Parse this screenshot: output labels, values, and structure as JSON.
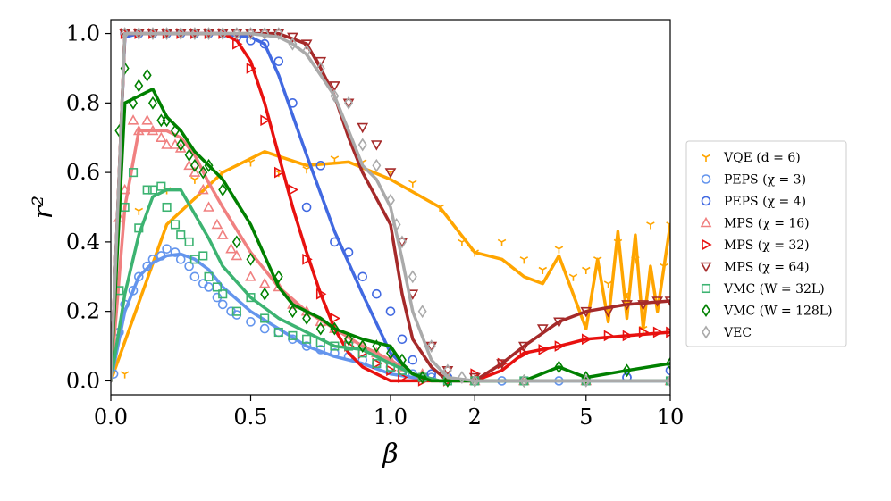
{
  "chart_data": {
    "type": "scatter",
    "xlabel": "β",
    "ylabel": "r²",
    "x_scale": "piecewise: linear on [0,1], logarithmic on [1,10]",
    "xlim": [
      0,
      10
    ],
    "ylim": [
      -0.04,
      1.04
    ],
    "x_ticks": [
      0.0,
      0.5,
      1.0,
      2,
      5,
      10
    ],
    "x_tick_labels": [
      "0.0",
      "0.5",
      "1.0",
      "2",
      "5",
      "10"
    ],
    "y_ticks": [
      0.0,
      0.2,
      0.4,
      0.6,
      0.8,
      1.0
    ],
    "y_tick_labels": [
      "0.0",
      "0.2",
      "0.4",
      "0.6",
      "0.8",
      "1.0"
    ],
    "legend_position": "outside right",
    "series": [
      {
        "name": "VQE (d = 6)",
        "color": "#FFA500",
        "marker": "tri_down",
        "line_x": [
          0,
          0.2,
          0.4,
          0.55,
          0.7,
          0.85,
          1.0,
          1.5,
          2.0,
          2.5,
          3.0,
          3.5,
          4.0,
          5.0,
          5.5,
          6.0,
          6.5,
          7.0,
          7.5,
          8.0,
          8.5,
          9.0,
          10.0
        ],
        "line_y": [
          0.0,
          0.45,
          0.6,
          0.66,
          0.62,
          0.63,
          0.58,
          0.5,
          0.37,
          0.35,
          0.3,
          0.28,
          0.36,
          0.15,
          0.35,
          0.17,
          0.43,
          0.18,
          0.42,
          0.15,
          0.33,
          0.2,
          0.45
        ],
        "scatter_x": [
          0.05,
          0.1,
          0.2,
          0.3,
          0.4,
          0.5,
          0.6,
          0.7,
          0.8,
          0.9,
          1.0,
          1.2,
          1.5,
          1.8,
          2.0,
          2.5,
          3.0,
          3.5,
          4.0,
          4.5,
          5.0,
          5.5,
          6.0,
          6.5,
          7.0,
          7.5,
          8.0,
          8.5,
          9.0,
          9.5,
          10.0
        ],
        "scatter_y": [
          0.02,
          0.49,
          0.55,
          0.58,
          0.6,
          0.63,
          0.6,
          0.61,
          0.64,
          0.63,
          0.6,
          0.57,
          0.5,
          0.4,
          0.37,
          0.4,
          0.35,
          0.32,
          0.38,
          0.3,
          0.32,
          0.35,
          0.28,
          0.4,
          0.25,
          0.35,
          0.15,
          0.45,
          0.22,
          0.33,
          0.45
        ]
      },
      {
        "name": "PEPS (χ = 3)",
        "color": "#6495ED",
        "marker": "circle",
        "line_x": [
          0,
          0.05,
          0.1,
          0.15,
          0.2,
          0.25,
          0.3,
          0.35,
          0.4,
          0.5,
          0.6,
          0.7,
          0.8,
          0.9,
          1.0,
          1.2,
          1.5,
          2.0,
          3.0,
          5.0,
          10.0
        ],
        "line_y": [
          0.0,
          0.2,
          0.3,
          0.34,
          0.36,
          0.365,
          0.35,
          0.32,
          0.27,
          0.2,
          0.15,
          0.1,
          0.07,
          0.05,
          0.02,
          0.01,
          0.0,
          0.0,
          0.0,
          0.0,
          0.0
        ],
        "scatter_x": [
          0.01,
          0.03,
          0.05,
          0.08,
          0.1,
          0.13,
          0.15,
          0.18,
          0.2,
          0.23,
          0.25,
          0.28,
          0.3,
          0.33,
          0.35,
          0.38,
          0.4,
          0.43,
          0.45,
          0.5,
          0.55,
          0.6,
          0.65,
          0.7,
          0.75,
          0.8,
          0.85,
          0.9,
          0.95,
          1.0,
          1.1,
          1.2,
          1.4,
          1.6,
          2.0,
          2.5,
          3.0,
          4.0,
          5.0,
          7.0,
          10.0
        ],
        "scatter_y": [
          0.02,
          0.14,
          0.22,
          0.26,
          0.3,
          0.33,
          0.35,
          0.36,
          0.38,
          0.37,
          0.35,
          0.33,
          0.3,
          0.28,
          0.27,
          0.24,
          0.22,
          0.2,
          0.19,
          0.17,
          0.15,
          0.14,
          0.12,
          0.1,
          0.09,
          0.08,
          0.07,
          0.06,
          0.05,
          0.04,
          0.03,
          0.02,
          0.01,
          0.01,
          0.0,
          0.0,
          0.0,
          0.0,
          0.0,
          0.01,
          0.0
        ]
      },
      {
        "name": "PEPS (χ = 4)",
        "color": "#4169E1",
        "marker": "circle",
        "line_x": [
          0,
          0.05,
          0.1,
          0.2,
          0.3,
          0.4,
          0.5,
          0.55,
          0.6,
          0.7,
          0.8,
          0.9,
          1.0,
          1.2,
          1.5,
          2.0,
          3.0,
          5.0,
          10.0
        ],
        "line_y": [
          0.0,
          0.99,
          1.0,
          1.0,
          1.0,
          1.0,
          0.99,
          0.97,
          0.88,
          0.65,
          0.43,
          0.25,
          0.08,
          0.02,
          0.0,
          0.0,
          0.0,
          0.0,
          0.0
        ],
        "scatter_x": [
          0.05,
          0.1,
          0.15,
          0.2,
          0.25,
          0.3,
          0.35,
          0.4,
          0.45,
          0.5,
          0.55,
          0.6,
          0.65,
          0.7,
          0.75,
          0.8,
          0.85,
          0.9,
          0.95,
          1.0,
          1.1,
          1.2,
          1.4,
          1.6,
          2.0,
          3.0,
          5.0,
          7.0,
          10.0
        ],
        "scatter_y": [
          1.0,
          1.0,
          1.0,
          1.0,
          1.0,
          1.0,
          1.0,
          1.0,
          0.99,
          0.98,
          0.97,
          0.92,
          0.8,
          0.5,
          0.62,
          0.4,
          0.37,
          0.3,
          0.25,
          0.2,
          0.12,
          0.06,
          0.02,
          0.01,
          0.0,
          0.0,
          0.0,
          0.01,
          0.03
        ]
      },
      {
        "name": "MPS (χ = 16)",
        "color": "#F08080",
        "marker": "triangle_up",
        "line_x": [
          0,
          0.05,
          0.1,
          0.15,
          0.2,
          0.25,
          0.3,
          0.35,
          0.4,
          0.5,
          0.6,
          0.7,
          0.8,
          0.9,
          1.0,
          1.2,
          1.5,
          2.0,
          3.0,
          5.0,
          10.0
        ],
        "line_y": [
          0.0,
          0.5,
          0.72,
          0.72,
          0.72,
          0.7,
          0.65,
          0.57,
          0.5,
          0.37,
          0.27,
          0.2,
          0.15,
          0.1,
          0.06,
          0.02,
          0.0,
          0.0,
          0.0,
          0.0,
          0.0
        ],
        "scatter_x": [
          0.03,
          0.05,
          0.08,
          0.1,
          0.13,
          0.15,
          0.18,
          0.2,
          0.23,
          0.25,
          0.28,
          0.3,
          0.33,
          0.35,
          0.38,
          0.4,
          0.43,
          0.45,
          0.5,
          0.55,
          0.6,
          0.65,
          0.7,
          0.75,
          0.8,
          0.85,
          0.9,
          0.95,
          1.0,
          1.1,
          1.3,
          1.6,
          2.0,
          3.0,
          5.0,
          10.0
        ],
        "scatter_y": [
          0.47,
          0.55,
          0.75,
          0.72,
          0.75,
          0.72,
          0.7,
          0.68,
          0.68,
          0.67,
          0.62,
          0.6,
          0.55,
          0.5,
          0.45,
          0.42,
          0.38,
          0.36,
          0.3,
          0.28,
          0.27,
          0.22,
          0.2,
          0.17,
          0.15,
          0.12,
          0.1,
          0.08,
          0.06,
          0.04,
          0.02,
          0.01,
          0.0,
          0.0,
          0.0,
          0.0
        ]
      },
      {
        "name": "MPS (χ = 32)",
        "color": "#E8110F",
        "marker": "triangle_right",
        "line_x": [
          0,
          0.05,
          0.1,
          0.2,
          0.3,
          0.4,
          0.45,
          0.5,
          0.55,
          0.6,
          0.65,
          0.7,
          0.75,
          0.8,
          0.85,
          0.9,
          1.0,
          1.2,
          1.5,
          2.0,
          2.5,
          3.0,
          4.0,
          5.0,
          7.0,
          10.0
        ],
        "line_y": [
          0.0,
          1.0,
          1.0,
          1.0,
          1.0,
          1.0,
          0.98,
          0.92,
          0.8,
          0.65,
          0.5,
          0.37,
          0.25,
          0.15,
          0.08,
          0.04,
          0.0,
          0.0,
          0.0,
          0.0,
          0.03,
          0.08,
          0.1,
          0.12,
          0.13,
          0.14
        ],
        "scatter_x": [
          0.05,
          0.1,
          0.15,
          0.2,
          0.25,
          0.3,
          0.35,
          0.4,
          0.45,
          0.5,
          0.55,
          0.6,
          0.65,
          0.7,
          0.75,
          0.8,
          0.85,
          0.9,
          0.95,
          1.0,
          1.1,
          1.3,
          1.6,
          2.0,
          2.5,
          3.0,
          3.5,
          4.0,
          5.0,
          6.0,
          7.0,
          8.0,
          9.0,
          10.0
        ],
        "scatter_y": [
          1.0,
          1.0,
          1.0,
          1.0,
          1.0,
          1.0,
          1.0,
          1.0,
          0.97,
          0.9,
          0.75,
          0.6,
          0.55,
          0.35,
          0.25,
          0.18,
          0.1,
          0.08,
          0.05,
          0.03,
          0.01,
          0.0,
          0.0,
          0.02,
          0.05,
          0.08,
          0.09,
          0.1,
          0.12,
          0.13,
          0.13,
          0.14,
          0.14,
          0.14
        ]
      },
      {
        "name": "MPS (χ = 64)",
        "color": "#A52A2A",
        "marker": "triangle_down",
        "line_x": [
          0,
          0.05,
          0.1,
          0.2,
          0.3,
          0.4,
          0.5,
          0.6,
          0.7,
          0.75,
          0.8,
          0.85,
          0.9,
          1.0,
          1.1,
          1.2,
          1.4,
          1.6,
          2.0,
          2.5,
          3.0,
          4.0,
          5.0,
          7.0,
          10.0
        ],
        "line_y": [
          0.0,
          1.0,
          1.0,
          1.0,
          1.0,
          1.0,
          1.0,
          1.0,
          0.97,
          0.9,
          0.82,
          0.7,
          0.6,
          0.45,
          0.25,
          0.12,
          0.04,
          0.0,
          0.0,
          0.05,
          0.1,
          0.17,
          0.2,
          0.22,
          0.23
        ],
        "scatter_x": [
          0.05,
          0.1,
          0.15,
          0.2,
          0.25,
          0.3,
          0.35,
          0.4,
          0.45,
          0.5,
          0.55,
          0.6,
          0.65,
          0.7,
          0.75,
          0.8,
          0.85,
          0.9,
          0.95,
          1.0,
          1.1,
          1.2,
          1.4,
          1.6,
          2.0,
          2.5,
          3.0,
          3.5,
          4.0,
          5.0,
          6.0,
          7.0,
          8.0,
          9.0,
          10.0
        ],
        "scatter_y": [
          1.0,
          1.0,
          1.0,
          1.0,
          1.0,
          1.0,
          1.0,
          1.0,
          1.0,
          1.0,
          1.0,
          1.0,
          0.99,
          0.97,
          0.92,
          0.85,
          0.8,
          0.73,
          0.68,
          0.6,
          0.4,
          0.25,
          0.1,
          0.03,
          0.01,
          0.05,
          0.1,
          0.15,
          0.17,
          0.2,
          0.2,
          0.22,
          0.22,
          0.23,
          0.23
        ]
      },
      {
        "name": "VMC (W = 32L)",
        "color": "#3CB371",
        "marker": "square",
        "line_x": [
          0,
          0.05,
          0.1,
          0.15,
          0.2,
          0.25,
          0.3,
          0.35,
          0.4,
          0.5,
          0.6,
          0.7,
          0.8,
          0.9,
          1.0,
          1.2,
          1.5,
          2.0,
          3.0,
          5.0,
          10.0
        ],
        "line_y": [
          0.0,
          0.25,
          0.42,
          0.53,
          0.55,
          0.55,
          0.48,
          0.41,
          0.33,
          0.24,
          0.18,
          0.14,
          0.1,
          0.09,
          0.05,
          0.02,
          0.0,
          0.0,
          0.0,
          0.0,
          0.0
        ],
        "scatter_x": [
          0.03,
          0.05,
          0.08,
          0.1,
          0.13,
          0.15,
          0.18,
          0.2,
          0.23,
          0.25,
          0.28,
          0.3,
          0.33,
          0.35,
          0.38,
          0.4,
          0.45,
          0.5,
          0.55,
          0.6,
          0.65,
          0.7,
          0.75,
          0.8,
          0.85,
          0.9,
          0.95,
          1.0,
          1.1,
          1.3,
          1.6,
          2.0,
          3.0,
          5.0,
          10.0
        ],
        "scatter_y": [
          0.26,
          0.5,
          0.6,
          0.44,
          0.55,
          0.55,
          0.56,
          0.5,
          0.45,
          0.42,
          0.4,
          0.35,
          0.36,
          0.3,
          0.27,
          0.25,
          0.2,
          0.24,
          0.18,
          0.14,
          0.13,
          0.12,
          0.11,
          0.1,
          0.1,
          0.08,
          0.05,
          0.04,
          0.03,
          0.01,
          0.0,
          0.0,
          0.0,
          0.0,
          0.0
        ]
      },
      {
        "name": "VMC (W = 128L)",
        "color": "#008000",
        "marker": "diamond",
        "line_x": [
          0,
          0.05,
          0.1,
          0.15,
          0.2,
          0.25,
          0.3,
          0.35,
          0.4,
          0.5,
          0.55,
          0.6,
          0.65,
          0.7,
          0.75,
          0.8,
          0.9,
          1.0,
          1.1,
          1.2,
          1.4,
          1.6,
          2.0,
          3.0,
          4.0,
          5.0,
          7.0,
          10.0
        ],
        "line_y": [
          0.0,
          0.8,
          0.82,
          0.84,
          0.76,
          0.72,
          0.66,
          0.62,
          0.58,
          0.45,
          0.36,
          0.27,
          0.22,
          0.2,
          0.18,
          0.15,
          0.12,
          0.1,
          0.05,
          0.02,
          0.0,
          0.0,
          0.0,
          0.0,
          0.04,
          0.01,
          0.03,
          0.05
        ],
        "scatter_x": [
          0.03,
          0.05,
          0.08,
          0.1,
          0.13,
          0.15,
          0.18,
          0.2,
          0.23,
          0.25,
          0.28,
          0.3,
          0.33,
          0.35,
          0.4,
          0.45,
          0.5,
          0.55,
          0.6,
          0.65,
          0.7,
          0.75,
          0.8,
          0.85,
          0.9,
          0.95,
          1.0,
          1.1,
          1.3,
          1.6,
          2.0,
          3.0,
          4.0,
          5.0,
          7.0,
          10.0
        ],
        "scatter_y": [
          0.72,
          0.9,
          0.8,
          0.85,
          0.88,
          0.8,
          0.75,
          0.75,
          0.72,
          0.68,
          0.65,
          0.62,
          0.6,
          0.62,
          0.55,
          0.4,
          0.35,
          0.25,
          0.3,
          0.2,
          0.18,
          0.15,
          0.15,
          0.12,
          0.1,
          0.1,
          0.08,
          0.06,
          0.01,
          0.0,
          0.0,
          0.0,
          0.04,
          0.01,
          0.03,
          0.05
        ]
      },
      {
        "name": "VEC",
        "color": "#AAAAAA",
        "marker": "diamond",
        "line_x": [
          0,
          0.05,
          0.1,
          0.2,
          0.3,
          0.4,
          0.5,
          0.6,
          0.65,
          0.7,
          0.75,
          0.8,
          0.85,
          0.9,
          0.95,
          1.0,
          1.1,
          1.2,
          1.4,
          1.6,
          2.0,
          3.0,
          5.0,
          10.0
        ],
        "line_y": [
          0.0,
          1.0,
          1.0,
          1.0,
          1.0,
          1.0,
          1.0,
          0.99,
          0.97,
          0.94,
          0.88,
          0.82,
          0.72,
          0.62,
          0.58,
          0.5,
          0.35,
          0.2,
          0.06,
          0.01,
          0.0,
          0.0,
          0.0,
          0.0
        ],
        "scatter_x": [
          0.05,
          0.1,
          0.15,
          0.2,
          0.25,
          0.3,
          0.35,
          0.4,
          0.45,
          0.5,
          0.55,
          0.6,
          0.65,
          0.7,
          0.75,
          0.8,
          0.85,
          0.9,
          0.95,
          1.0,
          1.05,
          1.1,
          1.2,
          1.3,
          1.4,
          1.6,
          1.8,
          2.0,
          3.0,
          5.0,
          10.0
        ],
        "scatter_y": [
          1.0,
          1.0,
          1.0,
          1.0,
          1.0,
          1.0,
          1.0,
          1.0,
          1.0,
          1.0,
          1.0,
          1.0,
          0.97,
          0.95,
          0.9,
          0.82,
          0.8,
          0.68,
          0.62,
          0.52,
          0.45,
          0.4,
          0.3,
          0.2,
          0.1,
          0.03,
          0.01,
          0.0,
          0.0,
          0.0,
          0.0
        ]
      }
    ]
  }
}
